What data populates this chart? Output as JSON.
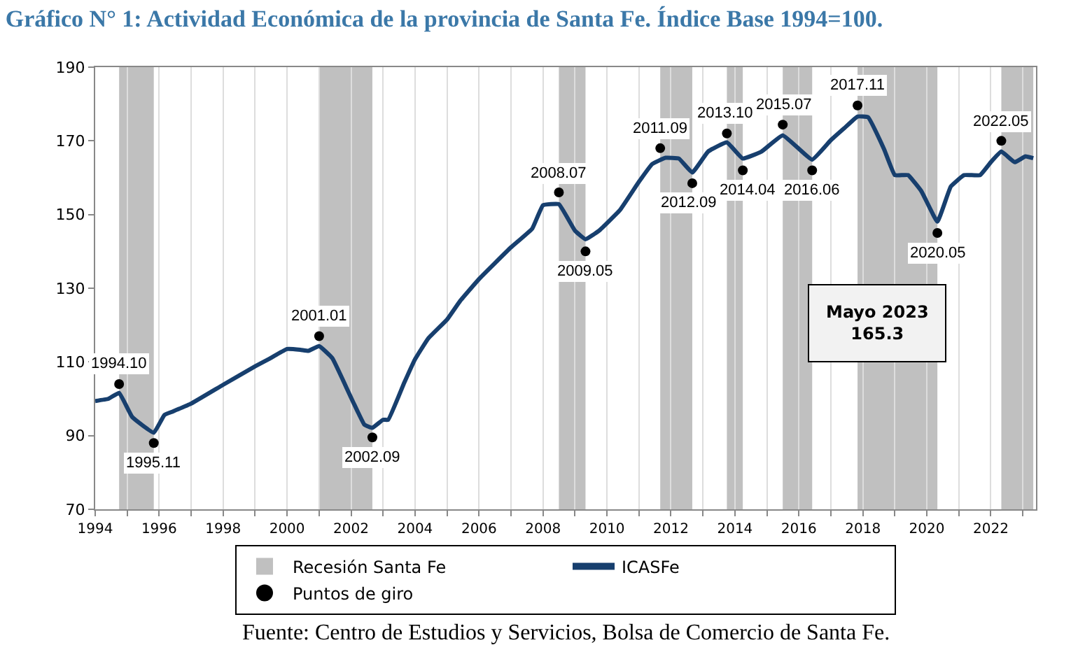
{
  "chart_data": {
    "type": "line",
    "title": "Gráfico N° 1: Actividad Económica de la provincia de Santa Fe. Índice Base 1994=100.",
    "x": [
      "1994-01",
      "1994-06",
      "1994-10",
      "1995-03",
      "1995-11",
      "1996-03",
      "1996-06",
      "1997-01",
      "1998-01",
      "1999-01",
      "1999-06",
      "2000-01",
      "2000-06",
      "2000-09",
      "2001-01",
      "2001-06",
      "2002-06",
      "2002-09",
      "2003-01",
      "2003-03",
      "2003-09",
      "2004-01",
      "2004-06",
      "2005-01",
      "2005-06",
      "2006-01",
      "2007-01",
      "2007-09",
      "2008-01",
      "2008-07",
      "2009-01",
      "2009-05",
      "2009-10",
      "2010-06",
      "2011-01",
      "2011-06",
      "2011-11",
      "2012-04",
      "2012-09",
      "2013-03",
      "2013-10",
      "2014-04",
      "2014-11",
      "2015-07",
      "2016-06",
      "2017-01",
      "2017-06",
      "2017-11",
      "2018-03",
      "2018-09",
      "2019-01",
      "2019-06",
      "2019-11",
      "2020-05",
      "2020-10",
      "2021-03",
      "2021-09",
      "2022-01",
      "2022-05",
      "2022-10",
      "2023-02",
      "2023-05"
    ],
    "series": [
      {
        "name": "ICASFe",
        "color": "#173f6e",
        "values": [
          99.4,
          100,
          101.6,
          95,
          90.8,
          95.6,
          96.5,
          98.7,
          103.8,
          108.8,
          110.7,
          113.5,
          113.3,
          113,
          114.3,
          111,
          93,
          92.1,
          94.3,
          94.3,
          104.4,
          110.7,
          116.4,
          121.5,
          126.6,
          132.5,
          141.1,
          146.2,
          152.5,
          152.8,
          145.6,
          143.3,
          145.6,
          151.3,
          158.9,
          163.7,
          165.4,
          165.2,
          161.4,
          167.1,
          169.6,
          165.2,
          167.1,
          171.5,
          164.9,
          170.2,
          173.4,
          176.6,
          176.4,
          167.7,
          160.7,
          160.7,
          156.3,
          148.1,
          157.6,
          160.7,
          160.7,
          164.2,
          167.1,
          164.2,
          165.8,
          165.3
        ]
      },
      {
        "name": "Puntos de giro",
        "type": "scatter",
        "color": "#000000",
        "marker": "circle",
        "x": [
          "1994-10",
          "1995-11",
          "2001-01",
          "2002-09",
          "2008-07",
          "2009-05",
          "2011-09",
          "2012-09",
          "2013-10",
          "2014-04",
          "2015-07",
          "2016-06",
          "2017-11",
          "2020-05",
          "2022-05"
        ],
        "values": [
          104,
          88,
          117,
          89.5,
          156,
          140,
          168,
          158.5,
          172,
          162,
          174.4,
          162,
          179.6,
          145,
          170
        ]
      }
    ],
    "bands": [
      {
        "axis": "x",
        "from": "1994-10",
        "to": "1995-11",
        "label": "Recesión Santa Fe",
        "color": "#c0c0c0"
      },
      {
        "axis": "x",
        "from": "2001-01",
        "to": "2002-09",
        "color": "#c0c0c0"
      },
      {
        "axis": "x",
        "from": "2008-07",
        "to": "2009-05",
        "color": "#c0c0c0"
      },
      {
        "axis": "x",
        "from": "2011-09",
        "to": "2012-09",
        "color": "#c0c0c0"
      },
      {
        "axis": "x",
        "from": "2013-10",
        "to": "2014-04",
        "color": "#c0c0c0"
      },
      {
        "axis": "x",
        "from": "2015-07",
        "to": "2016-06",
        "color": "#c0c0c0"
      },
      {
        "axis": "x",
        "from": "2017-11",
        "to": "2020-05",
        "color": "#c0c0c0"
      },
      {
        "axis": "x",
        "from": "2022-05",
        "to": "2023-05",
        "color": "#c0c0c0"
      }
    ],
    "annotations": [
      {
        "text": "1994.10",
        "x": "1994-10",
        "y": 104
      },
      {
        "text": "1995.11",
        "x": "1995-11",
        "y": 88
      },
      {
        "text": "2001.01",
        "x": "2001-01",
        "y": 117
      },
      {
        "text": "2002.09",
        "x": "2002-09",
        "y": 89.5
      },
      {
        "text": "2008.07",
        "x": "2008-07",
        "y": 156
      },
      {
        "text": "2009.05",
        "x": "2009-05",
        "y": 140
      },
      {
        "text": "2011.09",
        "x": "2011-09",
        "y": 168
      },
      {
        "text": "2012.09",
        "x": "2012-09",
        "y": 158.5
      },
      {
        "text": "2013.10",
        "x": "2013-10",
        "y": 172
      },
      {
        "text": "2014.04",
        "x": "2014-04",
        "y": 162
      },
      {
        "text": "2015.07",
        "x": "2015-07",
        "y": 174.4
      },
      {
        "text": "2016.06",
        "x": "2016-06",
        "y": 162
      },
      {
        "text": "2017.11",
        "x": "2017-11",
        "y": 179.6
      },
      {
        "text": "2020.05",
        "x": "2020-05",
        "y": 145
      },
      {
        "text": "2022.05",
        "x": "2022-05",
        "y": 170
      },
      "Mayo 2023\n165.3",
      "Fuente: Centro de Estudios y Servicios, Bolsa de Comercio de Santa Fe."
    ],
    "xlim": [
      "1994-01",
      "2023-06"
    ],
    "xticks": [
      {
        "value": "1994",
        "label": "1994"
      },
      {
        "value": "1995",
        "label": null
      },
      {
        "value": "1996",
        "label": "1996"
      },
      {
        "value": "1997",
        "label": null
      },
      {
        "value": "1998",
        "label": "1998"
      },
      {
        "value": "1999",
        "label": null
      },
      {
        "value": "2000",
        "label": "2000"
      },
      {
        "value": "2001",
        "label": null
      },
      {
        "value": "2002",
        "label": "2002"
      },
      {
        "value": "2003",
        "label": null
      },
      {
        "value": "2004",
        "label": "2004"
      },
      {
        "value": "2005",
        "label": null
      },
      {
        "value": "2006",
        "label": "2006"
      },
      {
        "value": "2007",
        "label": null
      },
      {
        "value": "2008",
        "label": "2008"
      },
      {
        "value": "2009",
        "label": null
      },
      {
        "value": "2010",
        "label": "2010"
      },
      {
        "value": "2011",
        "label": null
      },
      {
        "value": "2012",
        "label": "2012"
      },
      {
        "value": "2013",
        "label": null
      },
      {
        "value": "2014",
        "label": "2014"
      },
      {
        "value": "2015",
        "label": null
      },
      {
        "value": "2016",
        "label": "2016"
      },
      {
        "value": "2017",
        "label": null
      },
      {
        "value": "2018",
        "label": "2018"
      },
      {
        "value": "2019",
        "label": null
      },
      {
        "value": "2020",
        "label": "2020"
      },
      {
        "value": "2021",
        "label": null
      },
      {
        "value": "2022",
        "label": "2022"
      },
      {
        "value": "2023",
        "label": null
      }
    ],
    "ylim": [
      70,
      190
    ],
    "yticks": [
      70,
      90,
      110,
      130,
      150,
      170,
      190
    ],
    "grid": "x",
    "legend": "bottom",
    "line_style": "solid"
  }
}
